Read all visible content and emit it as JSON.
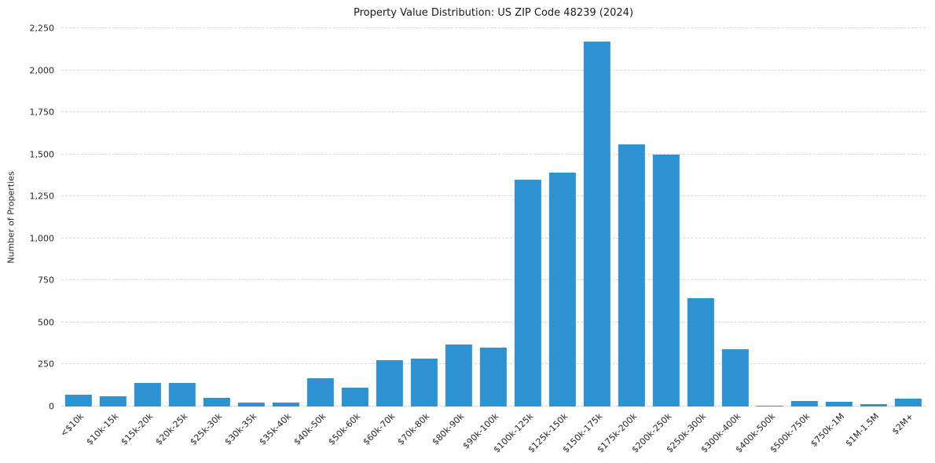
{
  "colors": {
    "bar": "#2e91d2",
    "grid": "#d7d7d7",
    "text": "#262626",
    "background": "#ffffff"
  },
  "chart_data": {
    "type": "bar",
    "title": "Property Value Distribution: US ZIP Code 48239 (2024)",
    "xlabel": "",
    "ylabel": "Number of Properties",
    "ylim": [
      0,
      2250
    ],
    "grid": "horizontal-dashed",
    "legend": "none",
    "categories": [
      "<$10k",
      "$10k-15k",
      "$15k-20k",
      "$20k-25k",
      "$25k-30k",
      "$30k-35k",
      "$35k-40k",
      "$40k-50k",
      "$50k-60k",
      "$60k-70k",
      "$70k-80k",
      "$80k-90k",
      "$90k-100k",
      "$100k-125k",
      "$125k-150k",
      "$150k-175k",
      "$175k-200k",
      "$200k-250k",
      "$250k-300k",
      "$300k-400k",
      "$400k-500k",
      "$500k-750k",
      "$750k-1M",
      "$1M-1.5M",
      "$2M+"
    ],
    "values": [
      70,
      60,
      140,
      140,
      50,
      25,
      25,
      170,
      110,
      275,
      285,
      370,
      350,
      1350,
      1390,
      2170,
      1560,
      1500,
      645,
      340,
      5,
      35,
      30,
      15,
      45
    ],
    "yticks": [
      {
        "value": 0,
        "label": "0"
      },
      {
        "value": 250,
        "label": "250"
      },
      {
        "value": 500,
        "label": "500"
      },
      {
        "value": 750,
        "label": "750"
      },
      {
        "value": 1000,
        "label": "1,000"
      },
      {
        "value": 1250,
        "label": "1,250"
      },
      {
        "value": 1500,
        "label": "1,500"
      },
      {
        "value": 1750,
        "label": "1,750"
      },
      {
        "value": 2000,
        "label": "2,000"
      },
      {
        "value": 2250,
        "label": "2,250"
      }
    ]
  }
}
